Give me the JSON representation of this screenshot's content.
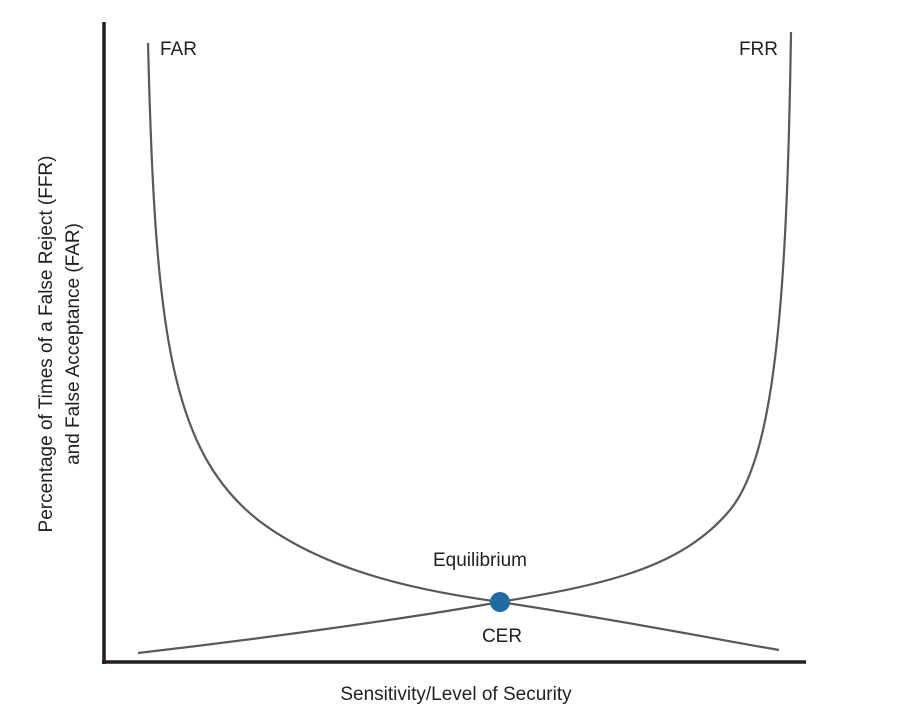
{
  "chart_data": {
    "type": "line",
    "title": "",
    "xlabel": "Sensitivity/Level of Security",
    "ylabel_lines": [
      "Percentage of Times of a False Reject (FFR)",
      "and False Acceptance (FAR)"
    ],
    "grid": false,
    "series": [
      {
        "name": "FAR",
        "color": "#58595b"
      },
      {
        "name": "FRR",
        "color": "#58595b"
      }
    ],
    "annotations": {
      "above_point": "Equilibrium",
      "below_point": "CER"
    },
    "crossover_color": "#1f6aa0"
  }
}
